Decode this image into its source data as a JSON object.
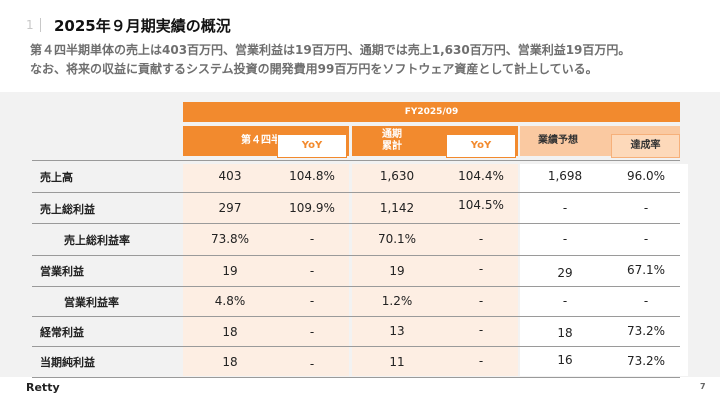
{
  "section_number": "1",
  "title": "2025年９月期実績の概況",
  "summary": [
    "第４四半期単体の売上は403百万円、営業利益は19百万円、通期では売上1,630百万円、営業利益19百万円。",
    "なお、将来の収益に貢献するシステム投資の開発費用99百万円をソフトウェア資産として計上している。"
  ],
  "table": {
    "period_header": "FY2025/09",
    "columns": {
      "q4": "第４四半期",
      "q4_yoy": "YoY",
      "ytd": "通期\n累計",
      "ytd_yoy": "YoY",
      "forecast": "業績予想",
      "achievement": "達成率"
    },
    "rows": [
      {
        "label": "売上高",
        "q4": "403",
        "q4_yoy": "104.8%",
        "ytd": "1,630",
        "ytd_yoy": "104.4%",
        "forecast": "1,698",
        "achievement": "96.0%"
      },
      {
        "label": "売上総利益",
        "q4": "297",
        "q4_yoy": "109.9%",
        "ytd": "1,142",
        "ytd_yoy": "104.5%",
        "forecast": "-",
        "achievement": "-"
      },
      {
        "label": "売上総利益率",
        "q4": "73.8%",
        "q4_yoy": "-",
        "ytd": "70.1%",
        "ytd_yoy": "-",
        "forecast": "-",
        "achievement": "-"
      },
      {
        "label": "営業利益",
        "q4": "19",
        "q4_yoy": "-",
        "ytd": "19",
        "ytd_yoy": "-",
        "forecast": "29",
        "achievement": "67.1%"
      },
      {
        "label": "営業利益率",
        "q4": "4.8%",
        "q4_yoy": "-",
        "ytd": "1.2%",
        "ytd_yoy": "-",
        "forecast": "-",
        "achievement": "-"
      },
      {
        "label": "経常利益",
        "q4": "18",
        "q4_yoy": "-",
        "ytd": "13",
        "ytd_yoy": "-",
        "forecast": "18",
        "achievement": "73.2%"
      },
      {
        "label": "当期純利益",
        "q4": "18",
        "q4_yoy": "-",
        "ytd": "11",
        "ytd_yoy": "-",
        "forecast": "16",
        "achievement": "73.2%"
      }
    ]
  },
  "footer": {
    "logo": "Retty",
    "page_number": "7"
  },
  "colors": {
    "accent": "#f28a2e",
    "accent_light": "#fac9a1",
    "cell_shade": "#fdeee3",
    "panel_bg": "#f2f2f2"
  }
}
